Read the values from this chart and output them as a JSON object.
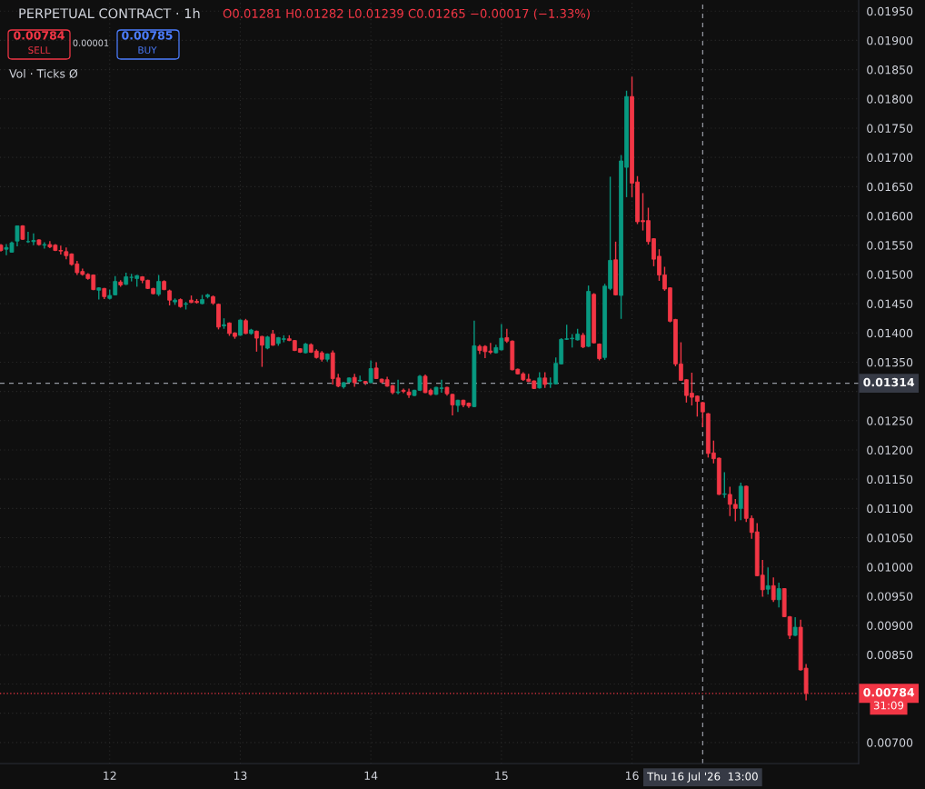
{
  "chart_data": {
    "type": "candlestick",
    "title": "PERPETUAL CONTRACT · 1h",
    "annotations": [
      "O0.01281 H0.01282 L0.01239 C0.01265 −0.00017 (−1.33%)",
      "0.00784",
      "SELL",
      "0.00001",
      "0.00785",
      "BUY",
      "Vol · Ticks Ø",
      "31:09"
    ],
    "colors": [
      "#f23645",
      "#089981",
      "#089981",
      "#089981",
      "#f23645",
      "#089981",
      "#089981",
      "#f23645",
      "#089981",
      "#f23645",
      "#f23645",
      "#f23645",
      "#f23645",
      "#f23645",
      "#f23645",
      "#f23645",
      "#f23645",
      "#f23645",
      "#089981",
      "#f23645",
      "#089981",
      "#089981",
      "#f23645",
      "#089981",
      "#089981",
      "#089981",
      "#f23645",
      "#f23645",
      "#f23645",
      "#089981",
      "#f23645",
      "#f23645",
      "#089981",
      "#f23645",
      "#089981",
      "#f23645",
      "#f23645",
      "#089981",
      "#089981",
      "#f23645",
      "#f23645",
      "#089981",
      "#f23645",
      "#f23645",
      "#089981",
      "#f23645",
      "#089981",
      "#f23645",
      "#f23645",
      "#089981",
      "#f23645",
      "#089981",
      "#089981",
      "#f23645",
      "#f23645",
      "#f23645",
      "#089981",
      "#f23645",
      "#f23645",
      "#f23645",
      "#089981",
      "#f23645",
      "#f23645",
      "#089981",
      "#089981",
      "#f23645",
      "#089981",
      "#f23645",
      "#089981",
      "#f23645",
      "#f23645",
      "#f23645",
      "#f23645",
      "#089981",
      "#f23645",
      "#f23645",
      "#089981",
      "#089981",
      "#f23645",
      "#f23645",
      "#089981",
      "#089981",
      "#f23645",
      "#f23645",
      "#089981",
      "#f23645",
      "#f23645",
      "#089981",
      "#f23645",
      "#f23645",
      "#f23645",
      "#089981",
      "#089981",
      "#f23645",
      "#f23645",
      "#f23645",
      "#f23645",
      "#f23645",
      "#f23645",
      "#089981",
      "#f23645",
      "#089981",
      "#089981",
      "#089981",
      "#089981",
      "#089981",
      "#089981",
      "#f23645",
      "#089981",
      "#f23645",
      "#f23645",
      "#089981",
      "#089981",
      "#f23645",
      "#089981",
      "#089981",
      "#f23645",
      "#f23645",
      "#f23645",
      "#f23645",
      "#f23645",
      "#f23645",
      "#f23645",
      "#f23645",
      "#f23645",
      "#f23645",
      "#f23645",
      "#f23645",
      "#f23645",
      "#f23645",
      "#f23645",
      "#f23645",
      "#f23645",
      "#089981",
      "#f23645",
      "#f23645",
      "#089981",
      "#f23645",
      "#f23645",
      "#f23645",
      "#f23645",
      "#089981",
      "#f23645",
      "#089981",
      "#f23645",
      "#f23645",
      "#089981",
      "#f23645",
      "#f23645"
    ],
    "grid": true,
    "xlim": [
      "2026-07-11T03:50",
      "2026-07-17T17:40"
    ],
    "ylim": [
      0.00664,
      0.01969
    ],
    "xticks": [
      {
        "value": "2026-07-12",
        "label": "12"
      },
      {
        "value": "2026-07-13",
        "label": "13"
      },
      {
        "value": "2026-07-14",
        "label": "14"
      },
      {
        "value": "2026-07-15",
        "label": "15"
      },
      {
        "value": "2026-07-16",
        "label": "16"
      }
    ],
    "yticks": [
      {
        "value": 0.007,
        "label": "0.00700"
      },
      {
        "value": 0.0075,
        "label": null
      },
      {
        "value": 0.008,
        "label": null
      },
      {
        "value": 0.0085,
        "label": "0.00850"
      },
      {
        "value": 0.009,
        "label": "0.00900"
      },
      {
        "value": 0.0095,
        "label": "0.00950"
      },
      {
        "value": 0.01,
        "label": "0.01000"
      },
      {
        "value": 0.0105,
        "label": "0.01050"
      },
      {
        "value": 0.011,
        "label": "0.01100"
      },
      {
        "value": 0.0115,
        "label": "0.01150"
      },
      {
        "value": 0.012,
        "label": "0.01200"
      },
      {
        "value": 0.0125,
        "label": "0.01250"
      },
      {
        "value": 0.013,
        "label": null
      },
      {
        "value": 0.0135,
        "label": "0.01350"
      },
      {
        "value": 0.014,
        "label": "0.01400"
      },
      {
        "value": 0.0145,
        "label": "0.01450"
      },
      {
        "value": 0.015,
        "label": "0.01500"
      },
      {
        "value": 0.0155,
        "label": "0.01550"
      },
      {
        "value": 0.016,
        "label": "0.01600"
      },
      {
        "value": 0.0165,
        "label": "0.01650"
      },
      {
        "value": 0.017,
        "label": "0.01700"
      },
      {
        "value": 0.0175,
        "label": "0.01750"
      },
      {
        "value": 0.018,
        "label": "0.01800"
      },
      {
        "value": 0.0185,
        "label": "0.01850"
      },
      {
        "value": 0.019,
        "label": "0.01900"
      },
      {
        "value": 0.0195,
        "label": "0.01950"
      }
    ],
    "ref_lines": [
      {
        "axis": "x",
        "value": "2026-07-16T13:00",
        "label": "Thu 16 Jul '26  13:00",
        "color": "#9598a1",
        "line_style": "dashed"
      },
      {
        "axis": "y",
        "value": 0.01314,
        "label": "0.01314",
        "color": "#9598a1",
        "line_style": "dashed"
      },
      {
        "axis": "y",
        "value": 0.00784,
        "label": "0.00784",
        "color": "#f23645",
        "line_style": "dotted"
      }
    ],
    "x": [
      "2026-07-11T04:00",
      "2026-07-11T05:00",
      "2026-07-11T06:00",
      "2026-07-11T07:00",
      "2026-07-11T08:00",
      "2026-07-11T09:00",
      "2026-07-11T10:00",
      "2026-07-11T11:00",
      "2026-07-11T12:00",
      "2026-07-11T13:00",
      "2026-07-11T14:00",
      "2026-07-11T15:00",
      "2026-07-11T16:00",
      "2026-07-11T17:00",
      "2026-07-11T18:00",
      "2026-07-11T19:00",
      "2026-07-11T20:00",
      "2026-07-11T21:00",
      "2026-07-11T22:00",
      "2026-07-11T23:00",
      "2026-07-12T00:00",
      "2026-07-12T01:00",
      "2026-07-12T02:00",
      "2026-07-12T03:00",
      "2026-07-12T04:00",
      "2026-07-12T05:00",
      "2026-07-12T06:00",
      "2026-07-12T07:00",
      "2026-07-12T08:00",
      "2026-07-12T09:00",
      "2026-07-12T10:00",
      "2026-07-12T11:00",
      "2026-07-12T12:00",
      "2026-07-12T13:00",
      "2026-07-12T14:00",
      "2026-07-12T15:00",
      "2026-07-12T16:00",
      "2026-07-12T17:00",
      "2026-07-12T18:00",
      "2026-07-12T19:00",
      "2026-07-12T20:00",
      "2026-07-12T21:00",
      "2026-07-12T22:00",
      "2026-07-12T23:00",
      "2026-07-13T00:00",
      "2026-07-13T01:00",
      "2026-07-13T02:00",
      "2026-07-13T03:00",
      "2026-07-13T04:00",
      "2026-07-13T05:00",
      "2026-07-13T06:00",
      "2026-07-13T07:00",
      "2026-07-13T08:00",
      "2026-07-13T09:00",
      "2026-07-13T10:00",
      "2026-07-13T11:00",
      "2026-07-13T12:00",
      "2026-07-13T13:00",
      "2026-07-13T14:00",
      "2026-07-13T15:00",
      "2026-07-13T16:00",
      "2026-07-13T17:00",
      "2026-07-13T18:00",
      "2026-07-13T19:00",
      "2026-07-13T20:00",
      "2026-07-13T21:00",
      "2026-07-13T22:00",
      "2026-07-13T23:00",
      "2026-07-14T00:00",
      "2026-07-14T01:00",
      "2026-07-14T02:00",
      "2026-07-14T03:00",
      "2026-07-14T04:00",
      "2026-07-14T05:00",
      "2026-07-14T06:00",
      "2026-07-14T07:00",
      "2026-07-14T08:00",
      "2026-07-14T09:00",
      "2026-07-14T10:00",
      "2026-07-14T11:00",
      "2026-07-14T12:00",
      "2026-07-14T13:00",
      "2026-07-14T14:00",
      "2026-07-14T15:00",
      "2026-07-14T16:00",
      "2026-07-14T17:00",
      "2026-07-14T18:00",
      "2026-07-14T19:00",
      "2026-07-14T20:00",
      "2026-07-14T21:00",
      "2026-07-14T22:00",
      "2026-07-14T23:00",
      "2026-07-15T00:00",
      "2026-07-15T01:00",
      "2026-07-15T02:00",
      "2026-07-15T03:00",
      "2026-07-15T04:00",
      "2026-07-15T05:00",
      "2026-07-15T06:00",
      "2026-07-15T07:00",
      "2026-07-15T08:00",
      "2026-07-15T09:00",
      "2026-07-15T10:00",
      "2026-07-15T11:00",
      "2026-07-15T12:00",
      "2026-07-15T13:00",
      "2026-07-15T14:00",
      "2026-07-15T15:00",
      "2026-07-15T16:00",
      "2026-07-15T17:00",
      "2026-07-15T18:00",
      "2026-07-15T19:00",
      "2026-07-15T20:00",
      "2026-07-15T21:00",
      "2026-07-15T22:00",
      "2026-07-15T23:00",
      "2026-07-16T00:00",
      "2026-07-16T01:00",
      "2026-07-16T02:00",
      "2026-07-16T03:00",
      "2026-07-16T04:00",
      "2026-07-16T05:00",
      "2026-07-16T06:00",
      "2026-07-16T07:00",
      "2026-07-16T08:00",
      "2026-07-16T09:00",
      "2026-07-16T10:00",
      "2026-07-16T11:00",
      "2026-07-16T12:00",
      "2026-07-16T13:00",
      "2026-07-16T14:00",
      "2026-07-16T15:00",
      "2026-07-16T16:00",
      "2026-07-16T17:00",
      "2026-07-16T18:00",
      "2026-07-16T19:00",
      "2026-07-16T20:00",
      "2026-07-16T21:00",
      "2026-07-16T22:00",
      "2026-07-16T23:00",
      "2026-07-17T00:00",
      "2026-07-17T01:00",
      "2026-07-17T02:00",
      "2026-07-17T03:00",
      "2026-07-17T04:00",
      "2026-07-17T05:00",
      "2026-07-17T06:00",
      "2026-07-17T07:00",
      "2026-07-17T08:00"
    ],
    "ohlc": [
      [
        0.0155,
        0.01552,
        0.01539,
        0.01541
      ],
      [
        0.01543,
        0.01552,
        0.01533,
        0.01546
      ],
      [
        0.01538,
        0.01556,
        0.01537,
        0.01554
      ],
      [
        0.01557,
        0.01583,
        0.01548,
        0.01583
      ],
      [
        0.01583,
        0.01584,
        0.01559,
        0.0156
      ],
      [
        0.01556,
        0.01573,
        0.01554,
        0.01556
      ],
      [
        0.01556,
        0.0157,
        0.0155,
        0.01558
      ],
      [
        0.01559,
        0.0156,
        0.01549,
        0.01551
      ],
      [
        0.0155,
        0.01555,
        0.01544,
        0.01551
      ],
      [
        0.01551,
        0.01557,
        0.01545,
        0.01547
      ],
      [
        0.0155,
        0.01552,
        0.0154,
        0.01541
      ],
      [
        0.01541,
        0.01549,
        0.01534,
        0.0154
      ],
      [
        0.01539,
        0.01546,
        0.01526,
        0.01532
      ],
      [
        0.01535,
        0.01536,
        0.01515,
        0.01517
      ],
      [
        0.01518,
        0.01523,
        0.01499,
        0.01503
      ],
      [
        0.01505,
        0.0151,
        0.01498,
        0.015
      ],
      [
        0.015,
        0.01502,
        0.01491,
        0.01493
      ],
      [
        0.01499,
        0.015,
        0.01473,
        0.01474
      ],
      [
        0.01473,
        0.01478,
        0.01457,
        0.01477
      ],
      [
        0.01476,
        0.01477,
        0.01458,
        0.01462
      ],
      [
        0.01459,
        0.01474,
        0.01457,
        0.01464
      ],
      [
        0.01465,
        0.01497,
        0.01464,
        0.01488
      ],
      [
        0.01487,
        0.0149,
        0.01479,
        0.01482
      ],
      [
        0.01483,
        0.01503,
        0.01482,
        0.01496
      ],
      [
        0.01495,
        0.01501,
        0.01488,
        0.01495
      ],
      [
        0.01493,
        0.01499,
        0.01479,
        0.01498
      ],
      [
        0.01496,
        0.01497,
        0.01485,
        0.0149
      ],
      [
        0.0149,
        0.01491,
        0.01475,
        0.01476
      ],
      [
        0.01476,
        0.01477,
        0.01466,
        0.01467
      ],
      [
        0.01466,
        0.01499,
        0.01463,
        0.01488
      ],
      [
        0.01488,
        0.0149,
        0.01473,
        0.01474
      ],
      [
        0.01472,
        0.01474,
        0.01447,
        0.01456
      ],
      [
        0.01453,
        0.01459,
        0.01448,
        0.01456
      ],
      [
        0.01457,
        0.01459,
        0.01443,
        0.01445
      ],
      [
        0.01449,
        0.01453,
        0.0144,
        0.0145
      ],
      [
        0.01456,
        0.01464,
        0.01451,
        0.01452
      ],
      [
        0.01454,
        0.01458,
        0.0145,
        0.01452
      ],
      [
        0.0145,
        0.01465,
        0.01449,
        0.01457
      ],
      [
        0.01462,
        0.01467,
        0.01459,
        0.01465
      ],
      [
        0.01462,
        0.01464,
        0.01448,
        0.01451
      ],
      [
        0.01449,
        0.0145,
        0.01406,
        0.0141
      ],
      [
        0.01412,
        0.01425,
        0.01407,
        0.01414
      ],
      [
        0.01417,
        0.01418,
        0.01395,
        0.01399
      ],
      [
        0.014,
        0.01401,
        0.0139,
        0.01394
      ],
      [
        0.01396,
        0.01423,
        0.01395,
        0.01422
      ],
      [
        0.01421,
        0.01424,
        0.01398,
        0.01399
      ],
      [
        0.01399,
        0.01407,
        0.01397,
        0.01405
      ],
      [
        0.01403,
        0.01404,
        0.01368,
        0.01391
      ],
      [
        0.01394,
        0.01395,
        0.01342,
        0.01379
      ],
      [
        0.01374,
        0.01395,
        0.01372,
        0.01393
      ],
      [
        0.01398,
        0.01405,
        0.01378,
        0.01379
      ],
      [
        0.01382,
        0.01393,
        0.01378,
        0.01392
      ],
      [
        0.01389,
        0.01396,
        0.01384,
        0.0139
      ],
      [
        0.0139,
        0.01396,
        0.01386,
        0.01387
      ],
      [
        0.01387,
        0.01388,
        0.01369,
        0.0137
      ],
      [
        0.01373,
        0.01374,
        0.01366,
        0.01367
      ],
      [
        0.01366,
        0.01383,
        0.01365,
        0.01381
      ],
      [
        0.0138,
        0.01382,
        0.01366,
        0.01367
      ],
      [
        0.01369,
        0.01372,
        0.01356,
        0.01358
      ],
      [
        0.01366,
        0.01369,
        0.01351,
        0.01355
      ],
      [
        0.01355,
        0.01365,
        0.01351,
        0.01364
      ],
      [
        0.01366,
        0.0137,
        0.01312,
        0.01322
      ],
      [
        0.01323,
        0.0133,
        0.01307,
        0.01309
      ],
      [
        0.01308,
        0.01316,
        0.01305,
        0.01315
      ],
      [
        0.01316,
        0.01324,
        0.01315,
        0.01323
      ],
      [
        0.01324,
        0.0133,
        0.01308,
        0.01315
      ],
      [
        0.01318,
        0.01327,
        0.01317,
        0.01319
      ],
      [
        0.01317,
        0.01318,
        0.01311,
        0.01315
      ],
      [
        0.01315,
        0.01353,
        0.01314,
        0.01339
      ],
      [
        0.0134,
        0.0135,
        0.01321,
        0.01322
      ],
      [
        0.01321,
        0.01322,
        0.01314,
        0.01316
      ],
      [
        0.0132,
        0.01325,
        0.01308,
        0.01309
      ],
      [
        0.0131,
        0.01311,
        0.01295,
        0.01298
      ],
      [
        0.01298,
        0.0132,
        0.01295,
        0.01299
      ],
      [
        0.01302,
        0.01305,
        0.01297,
        0.013
      ],
      [
        0.01299,
        0.01305,
        0.01289,
        0.01294
      ],
      [
        0.01293,
        0.01303,
        0.01292,
        0.01302
      ],
      [
        0.01302,
        0.01328,
        0.01301,
        0.01326
      ],
      [
        0.01326,
        0.01329,
        0.01297,
        0.01298
      ],
      [
        0.01302,
        0.01305,
        0.01293,
        0.01295
      ],
      [
        0.01295,
        0.01308,
        0.01294,
        0.01307
      ],
      [
        0.01305,
        0.0132,
        0.01298,
        0.01306
      ],
      [
        0.01307,
        0.01308,
        0.01293,
        0.01296
      ],
      [
        0.01295,
        0.01296,
        0.01259,
        0.01277
      ],
      [
        0.01276,
        0.01286,
        0.01265,
        0.01285
      ],
      [
        0.01285,
        0.01286,
        0.01273,
        0.01277
      ],
      [
        0.0128,
        0.01281,
        0.01272,
        0.01275
      ],
      [
        0.01274,
        0.01421,
        0.01273,
        0.01378
      ],
      [
        0.01377,
        0.0138,
        0.01364,
        0.0137
      ],
      [
        0.01377,
        0.01379,
        0.01357,
        0.01368
      ],
      [
        0.01369,
        0.01383,
        0.01364,
        0.01367
      ],
      [
        0.01366,
        0.0138,
        0.01365,
        0.01375
      ],
      [
        0.01371,
        0.01415,
        0.0137,
        0.01391
      ],
      [
        0.01392,
        0.01407,
        0.01383,
        0.01386
      ],
      [
        0.01386,
        0.01387,
        0.01336,
        0.01337
      ],
      [
        0.01338,
        0.01339,
        0.01329,
        0.0133
      ],
      [
        0.0133,
        0.01333,
        0.01318,
        0.0132
      ],
      [
        0.01321,
        0.0133,
        0.01316,
        0.01317
      ],
      [
        0.01318,
        0.01319,
        0.01304,
        0.01305
      ],
      [
        0.01306,
        0.01333,
        0.01305,
        0.01323
      ],
      [
        0.01323,
        0.01333,
        0.01306,
        0.01312
      ],
      [
        0.01313,
        0.01324,
        0.01306,
        0.01314
      ],
      [
        0.01313,
        0.01358,
        0.01312,
        0.01348
      ],
      [
        0.01347,
        0.01391,
        0.01346,
        0.01389
      ],
      [
        0.01389,
        0.01414,
        0.01388,
        0.0139
      ],
      [
        0.0139,
        0.01398,
        0.01375,
        0.01391
      ],
      [
        0.01388,
        0.01407,
        0.01387,
        0.01398
      ],
      [
        0.01396,
        0.014,
        0.01374,
        0.01376
      ],
      [
        0.01377,
        0.01481,
        0.01376,
        0.01471
      ],
      [
        0.01466,
        0.01468,
        0.01382,
        0.01383
      ],
      [
        0.01381,
        0.01382,
        0.01353,
        0.01356
      ],
      [
        0.01358,
        0.01484,
        0.01354,
        0.0148
      ],
      [
        0.01476,
        0.01667,
        0.01473,
        0.01524
      ],
      [
        0.01525,
        0.01556,
        0.01464,
        0.01465
      ],
      [
        0.01464,
        0.01704,
        0.01424,
        0.01694
      ],
      [
        0.01683,
        0.01814,
        0.01632,
        0.01804
      ],
      [
        0.01804,
        0.01838,
        0.01632,
        0.01656
      ],
      [
        0.01658,
        0.01668,
        0.01586,
        0.0159
      ],
      [
        0.01592,
        0.01639,
        0.01575,
        0.0159
      ],
      [
        0.01592,
        0.01614,
        0.01551,
        0.01556
      ],
      [
        0.01561,
        0.01562,
        0.01514,
        0.01526
      ],
      [
        0.01531,
        0.01543,
        0.01489,
        0.01499
      ],
      [
        0.01499,
        0.01513,
        0.01472,
        0.01475
      ],
      [
        0.01477,
        0.01478,
        0.01418,
        0.0142
      ],
      [
        0.01423,
        0.01424,
        0.01343,
        0.01347
      ],
      [
        0.01347,
        0.01384,
        0.01318,
        0.01319
      ],
      [
        0.0132,
        0.01321,
        0.01281,
        0.01293
      ],
      [
        0.01297,
        0.01332,
        0.01276,
        0.0129
      ],
      [
        0.01292,
        0.01293,
        0.01257,
        0.01283
      ],
      [
        0.01281,
        0.01282,
        0.01239,
        0.01265
      ],
      [
        0.01262,
        0.01263,
        0.01187,
        0.01194
      ],
      [
        0.01195,
        0.01216,
        0.01177,
        0.01185
      ],
      [
        0.01186,
        0.01187,
        0.01123,
        0.01124
      ],
      [
        0.01124,
        0.01162,
        0.01118,
        0.01125
      ],
      [
        0.01124,
        0.01137,
        0.01087,
        0.01107
      ],
      [
        0.01107,
        0.01116,
        0.01078,
        0.011
      ],
      [
        0.011,
        0.01144,
        0.0108,
        0.01138
      ],
      [
        0.01138,
        0.01139,
        0.01077,
        0.01083
      ],
      [
        0.01083,
        0.01088,
        0.01048,
        0.01059
      ],
      [
        0.0106,
        0.01075,
        0.00984,
        0.00985
      ],
      [
        0.00986,
        0.01012,
        0.00949,
        0.00961
      ],
      [
        0.00962,
        0.00999,
        0.00953,
        0.00968
      ],
      [
        0.00968,
        0.00982,
        0.0094,
        0.00944
      ],
      [
        0.00944,
        0.00973,
        0.00931,
        0.00963
      ],
      [
        0.00963,
        0.00964,
        0.00914,
        0.00915
      ],
      [
        0.00915,
        0.00916,
        0.00877,
        0.00883
      ],
      [
        0.00883,
        0.00914,
        0.00882,
        0.00897
      ],
      [
        0.00897,
        0.0091,
        0.00823,
        0.00824
      ],
      [
        0.00827,
        0.00834,
        0.00772,
        0.00784
      ]
    ]
  }
}
